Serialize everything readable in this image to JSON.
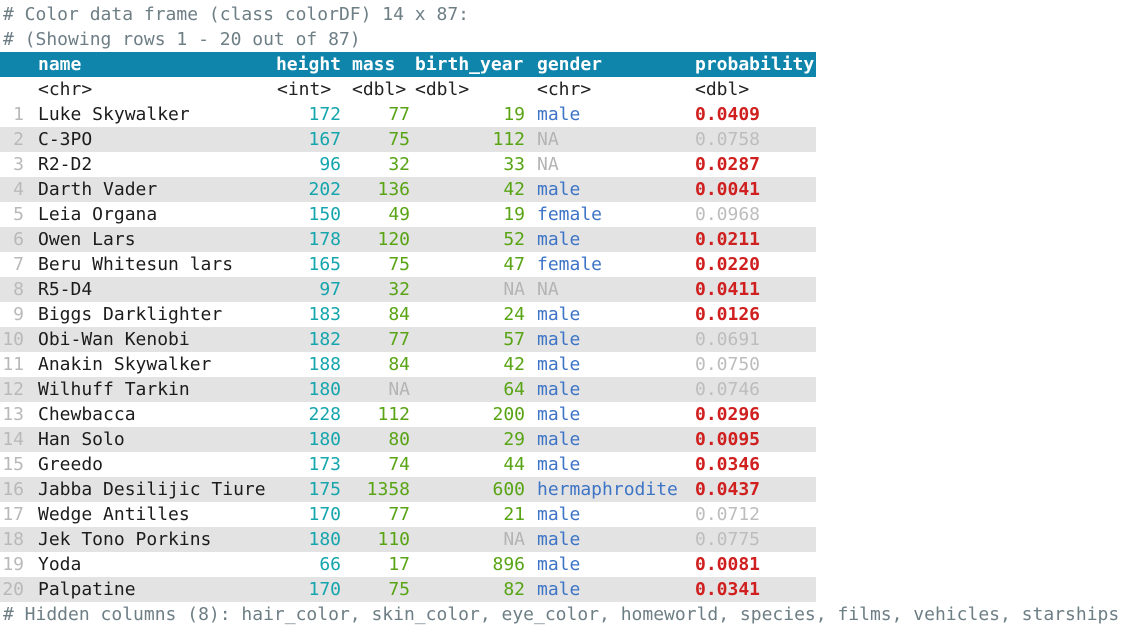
{
  "console": {
    "comment_line_1": "# Color data frame (class colorDF) 14 x 87:",
    "comment_line_2": "# (Showing rows 1 - 20 out of 87)",
    "footer_comment": "# Hidden columns (8): hair_color, skin_color, eye_color, homeworld, species, films, vehicles, starships"
  },
  "colors": {
    "header-bg": "#1085ac",
    "header-text": "#ffffff",
    "comment": "#6d7e85",
    "row-number": "#b9b9b9",
    "name-text": "#1c1c1c",
    "height-teal": "#14a5ad",
    "numeric-green": "#58a414",
    "gender-blue": "#3d74c6",
    "na-gray": "#b4b4b4",
    "prob-red": "#d01f1f",
    "prob-gray": "#bdbdbd",
    "stripe-bg": "#e3e3e3"
  },
  "table": {
    "headers": {
      "name": "name",
      "height": "height",
      "mass": "mass",
      "birth_year": "birth_year",
      "gender": "gender",
      "probability": "probability"
    },
    "types": {
      "name": "<chr>",
      "height": "<int>",
      "mass": "<dbl>",
      "birth_year": "<dbl>",
      "gender": "<chr>",
      "probability": "<dbl>"
    },
    "rows": [
      {
        "num": "1",
        "name": "Luke Skywalker",
        "height": "172",
        "mass": "77",
        "birth_year": "19",
        "gender": "male",
        "probability": "0.0409",
        "prob_significant": true
      },
      {
        "num": "2",
        "name": "C-3PO",
        "height": "167",
        "mass": "75",
        "birth_year": "112",
        "gender": "NA",
        "probability": "0.0758",
        "prob_significant": false
      },
      {
        "num": "3",
        "name": "R2-D2",
        "height": "96",
        "mass": "32",
        "birth_year": "33",
        "gender": "NA",
        "probability": "0.0287",
        "prob_significant": true
      },
      {
        "num": "4",
        "name": "Darth Vader",
        "height": "202",
        "mass": "136",
        "birth_year": "42",
        "gender": "male",
        "probability": "0.0041",
        "prob_significant": true
      },
      {
        "num": "5",
        "name": "Leia Organa",
        "height": "150",
        "mass": "49",
        "birth_year": "19",
        "gender": "female",
        "probability": "0.0968",
        "prob_significant": false
      },
      {
        "num": "6",
        "name": "Owen Lars",
        "height": "178",
        "mass": "120",
        "birth_year": "52",
        "gender": "male",
        "probability": "0.0211",
        "prob_significant": true
      },
      {
        "num": "7",
        "name": "Beru Whitesun lars",
        "height": "165",
        "mass": "75",
        "birth_year": "47",
        "gender": "female",
        "probability": "0.0220",
        "prob_significant": true
      },
      {
        "num": "8",
        "name": "R5-D4",
        "height": "97",
        "mass": "32",
        "birth_year": "NA",
        "gender": "NA",
        "probability": "0.0411",
        "prob_significant": true
      },
      {
        "num": "9",
        "name": "Biggs Darklighter",
        "height": "183",
        "mass": "84",
        "birth_year": "24",
        "gender": "male",
        "probability": "0.0126",
        "prob_significant": true
      },
      {
        "num": "10",
        "name": "Obi-Wan Kenobi",
        "height": "182",
        "mass": "77",
        "birth_year": "57",
        "gender": "male",
        "probability": "0.0691",
        "prob_significant": false
      },
      {
        "num": "11",
        "name": "Anakin Skywalker",
        "height": "188",
        "mass": "84",
        "birth_year": "42",
        "gender": "male",
        "probability": "0.0750",
        "prob_significant": false
      },
      {
        "num": "12",
        "name": "Wilhuff Tarkin",
        "height": "180",
        "mass": "NA",
        "birth_year": "64",
        "gender": "male",
        "probability": "0.0746",
        "prob_significant": false
      },
      {
        "num": "13",
        "name": "Chewbacca",
        "height": "228",
        "mass": "112",
        "birth_year": "200",
        "gender": "male",
        "probability": "0.0296",
        "prob_significant": true
      },
      {
        "num": "14",
        "name": "Han Solo",
        "height": "180",
        "mass": "80",
        "birth_year": "29",
        "gender": "male",
        "probability": "0.0095",
        "prob_significant": true
      },
      {
        "num": "15",
        "name": "Greedo",
        "height": "173",
        "mass": "74",
        "birth_year": "44",
        "gender": "male",
        "probability": "0.0346",
        "prob_significant": true
      },
      {
        "num": "16",
        "name": "Jabba Desilijic Tiure",
        "height": "175",
        "mass": "1358",
        "birth_year": "600",
        "gender": "hermaphrodite",
        "probability": "0.0437",
        "prob_significant": true
      },
      {
        "num": "17",
        "name": "Wedge Antilles",
        "height": "170",
        "mass": "77",
        "birth_year": "21",
        "gender": "male",
        "probability": "0.0712",
        "prob_significant": false
      },
      {
        "num": "18",
        "name": "Jek Tono Porkins",
        "height": "180",
        "mass": "110",
        "birth_year": "NA",
        "gender": "male",
        "probability": "0.0775",
        "prob_significant": false
      },
      {
        "num": "19",
        "name": "Yoda",
        "height": "66",
        "mass": "17",
        "birth_year": "896",
        "gender": "male",
        "probability": "0.0081",
        "prob_significant": true
      },
      {
        "num": "20",
        "name": "Palpatine",
        "height": "170",
        "mass": "75",
        "birth_year": "82",
        "gender": "male",
        "probability": "0.0341",
        "prob_significant": true
      }
    ]
  }
}
